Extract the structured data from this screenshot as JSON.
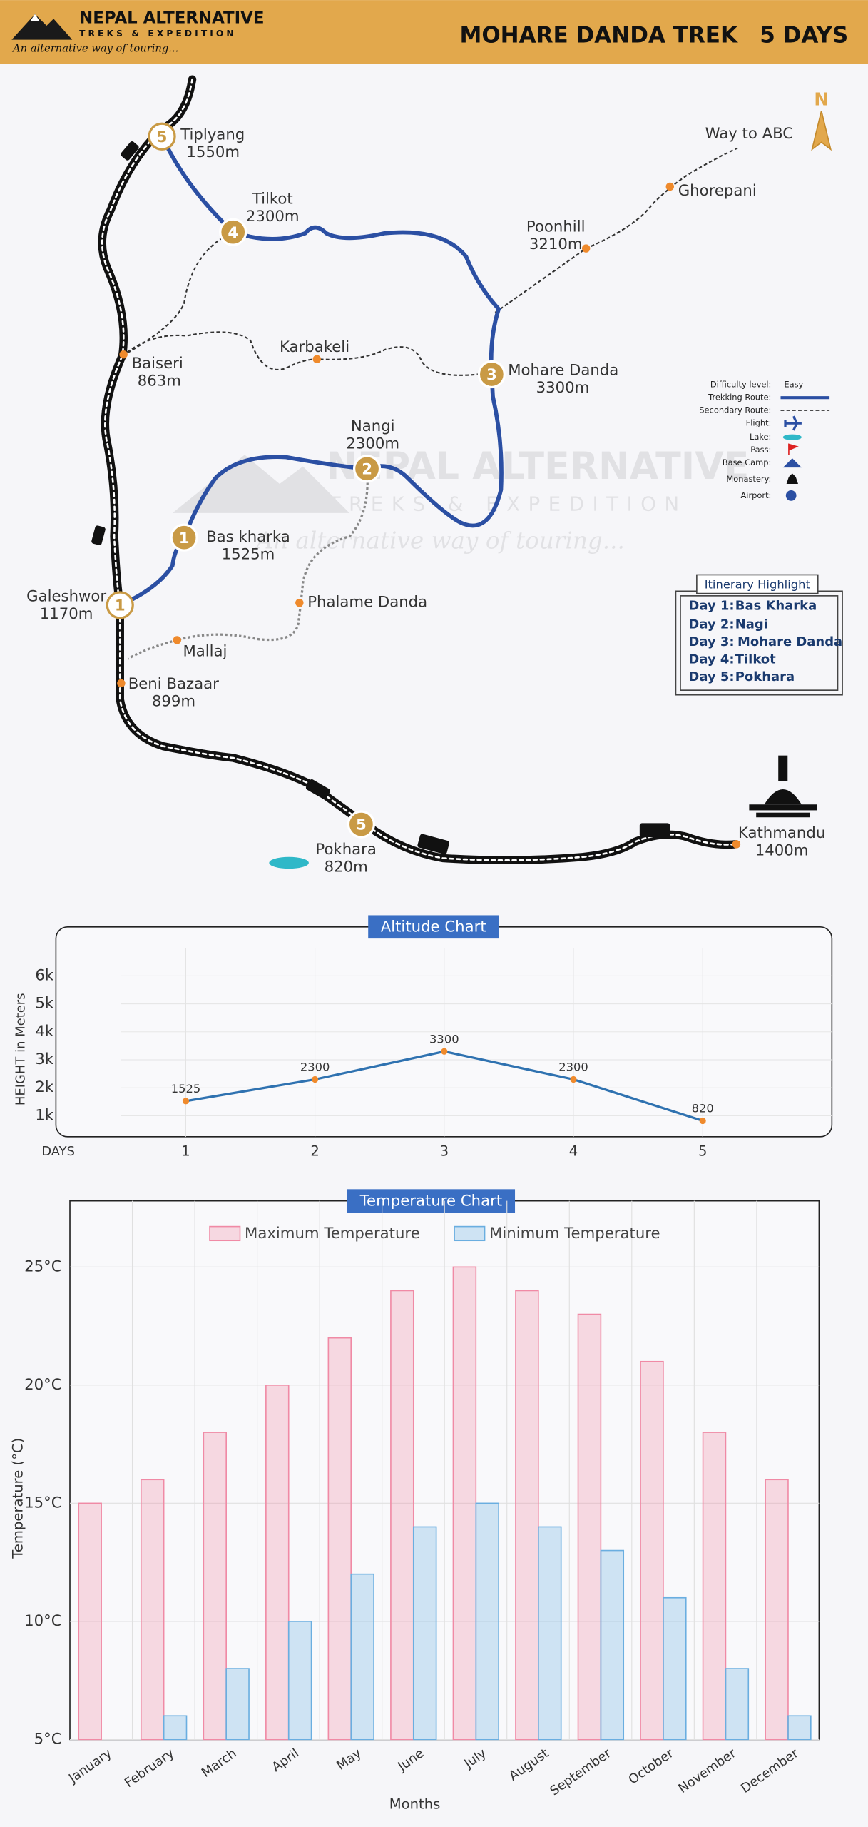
{
  "header": {
    "brand": "NEPAL ALTERNATIVE",
    "subbrand": "TREKS & EXPEDITION",
    "tagline": "An alternative way of touring...",
    "title": "MOHARE DANDA TREK",
    "duration": "5 DAYS"
  },
  "map": {
    "compass": "N",
    "places": [
      {
        "name": "Tiplyang",
        "altitude": "1550m",
        "marker": 5
      },
      {
        "name": "Tilkot",
        "altitude": "2300m",
        "marker": 4
      },
      {
        "name": "Poonhill",
        "altitude": "3210m"
      },
      {
        "name": "Ghorepani"
      },
      {
        "name": "Way to ABC"
      },
      {
        "name": "Baiseri",
        "altitude": "863m"
      },
      {
        "name": "Karbakeli"
      },
      {
        "name": "Mohare Danda",
        "altitude": "3300m",
        "marker": 3
      },
      {
        "name": "Nangi",
        "altitude": "2300m",
        "marker": 2
      },
      {
        "name": "Bas kharka",
        "altitude": "1525m",
        "marker": 1
      },
      {
        "name": "Galeshwor",
        "altitude": "1170m",
        "marker": 1
      },
      {
        "name": "Phalame Danda"
      },
      {
        "name": "Mallaj"
      },
      {
        "name": "Beni Bazaar",
        "altitude": "899m"
      },
      {
        "name": "Pokhara",
        "altitude": "820m",
        "marker": 5
      },
      {
        "name": "Kathmandu",
        "altitude": "1400m"
      }
    ]
  },
  "legend": {
    "items": [
      {
        "label": "Difficulty level:",
        "value": "Easy"
      },
      {
        "label": "Trekking Route:"
      },
      {
        "label": "Secondary Route:"
      },
      {
        "label": "Flight:"
      },
      {
        "label": "Lake:"
      },
      {
        "label": "Pass:"
      },
      {
        "label": "Base Camp:"
      },
      {
        "label": "Monastery:"
      },
      {
        "label": "Airport:"
      }
    ]
  },
  "itinerary": {
    "title": "Itinerary Highlight",
    "rows": [
      {
        "day": "Day 1:",
        "place": "Bas Kharka"
      },
      {
        "day": "Day 2:",
        "place": "Nagi"
      },
      {
        "day": "Day 3:",
        "place": "Mohare Danda"
      },
      {
        "day": "Day 4:",
        "place": "Tilkot"
      },
      {
        "day": "Day 5:",
        "place": "Pokhara"
      }
    ]
  },
  "chart_data": [
    {
      "type": "line",
      "title": "Altitude Chart",
      "x_label": "DAYS",
      "y_label": "HEIGHT in Meters",
      "x": [
        1,
        2,
        3,
        4,
        5
      ],
      "values": [
        1525,
        2300,
        3300,
        2300,
        820
      ],
      "color": "#2f72b0",
      "marker_color": "#ef8a2c",
      "xlim": [
        0.5,
        6
      ],
      "xticks": [
        1,
        2,
        3,
        4,
        5
      ],
      "ylim": [
        250,
        7000
      ],
      "yticks": [
        {
          "value": 1000,
          "label": "1k"
        },
        {
          "value": 2000,
          "label": "2k"
        },
        {
          "value": 3000,
          "label": "3k"
        },
        {
          "value": 4000,
          "label": "4k"
        },
        {
          "value": 5000,
          "label": "5k"
        },
        {
          "value": 6000,
          "label": "6k"
        }
      ],
      "grid": true
    },
    {
      "type": "bar",
      "title": "Temperature Chart",
      "x_label": "Months",
      "y_label": "Temperature (°C)",
      "categories": [
        "January",
        "February",
        "March",
        "April",
        "May",
        "June",
        "July",
        "August",
        "September",
        "October",
        "November",
        "December"
      ],
      "series": [
        {
          "name": "Maximum Temperature",
          "color": "#f08aa5",
          "values": [
            15,
            16,
            18,
            20,
            22,
            24,
            25,
            24,
            23,
            21,
            18,
            16
          ]
        },
        {
          "name": "Minimum Temperature",
          "color": "#6aaee0",
          "values": [
            5,
            6,
            8,
            10,
            12,
            14,
            15,
            14,
            13,
            11,
            8,
            6
          ]
        }
      ],
      "ylim": [
        5,
        27.8
      ],
      "yticks": [
        {
          "value": 5,
          "label": "5°C"
        },
        {
          "value": 10,
          "label": "10°C"
        },
        {
          "value": 15,
          "label": "15°C"
        },
        {
          "value": 20,
          "label": "20°C"
        },
        {
          "value": 25,
          "label": "25°C"
        }
      ],
      "grid": true
    }
  ]
}
